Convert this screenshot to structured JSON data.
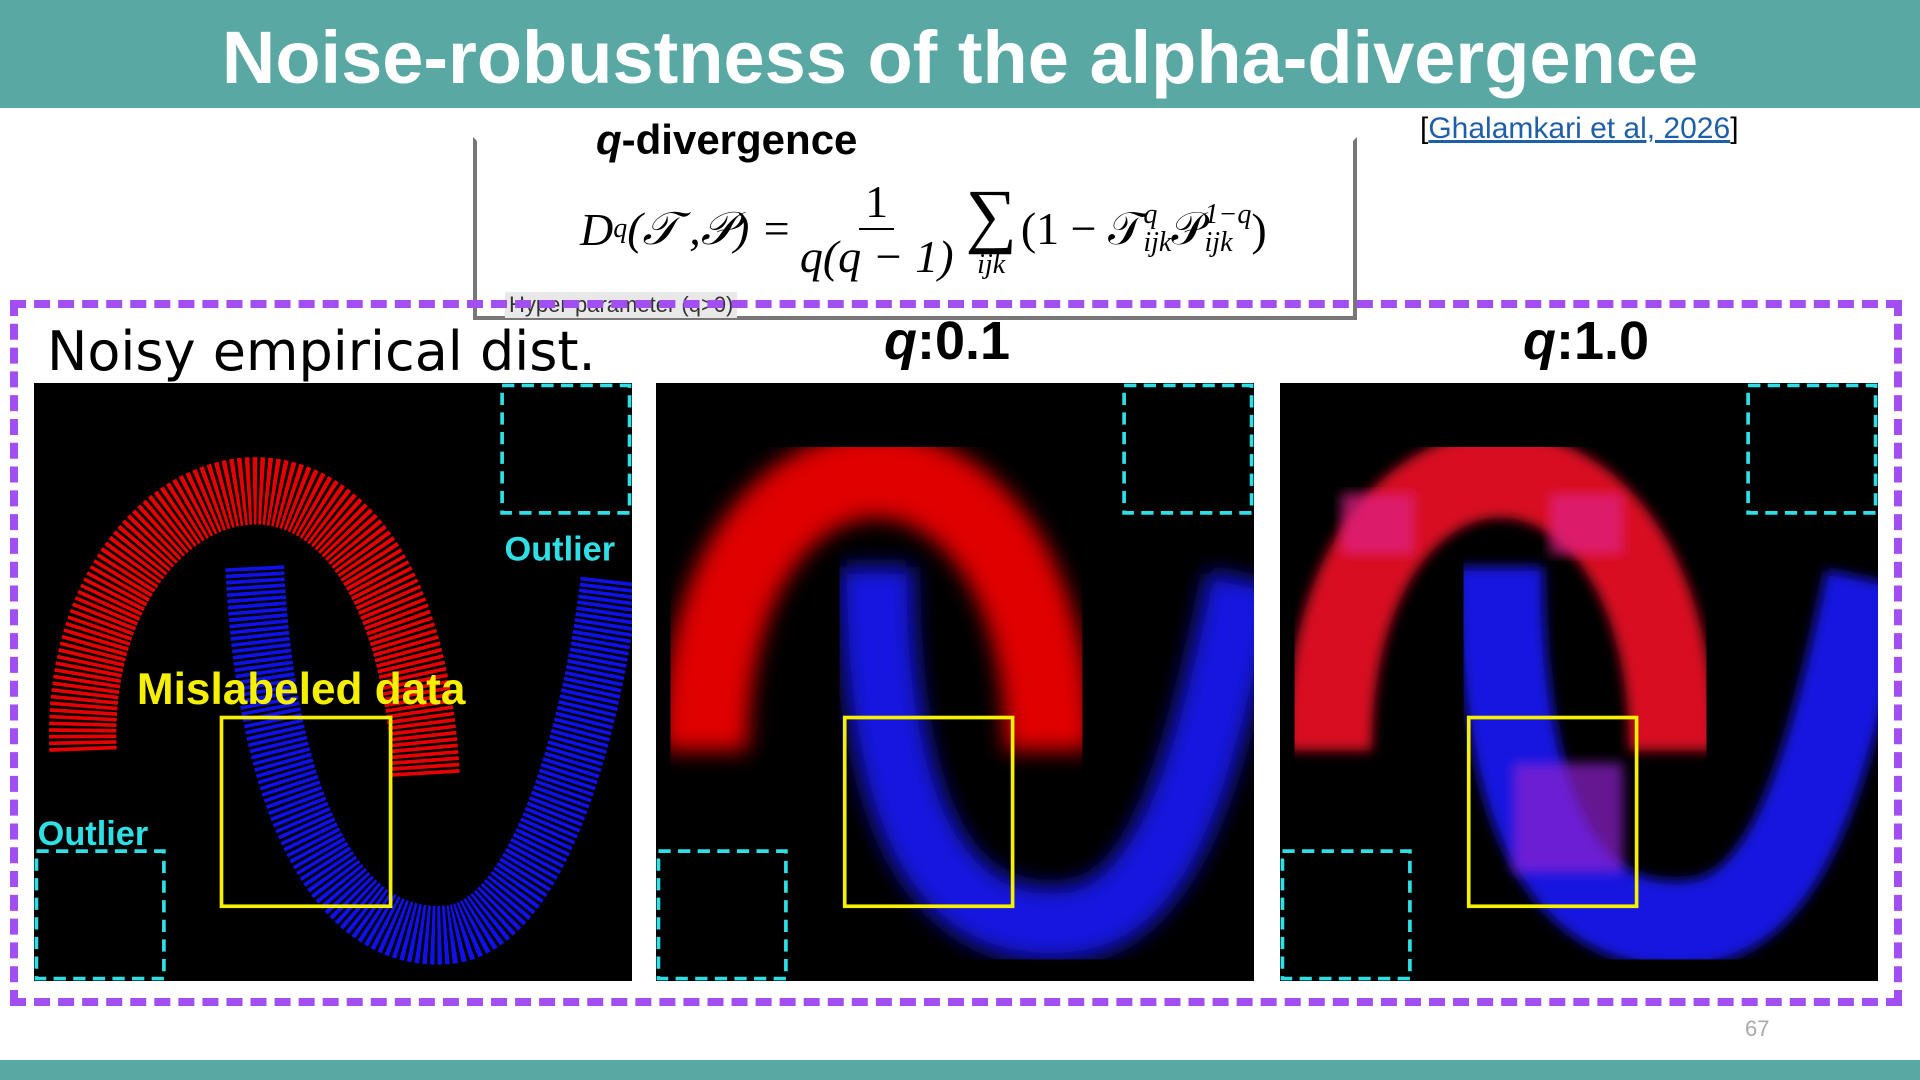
{
  "header": {
    "title": "Noise-robustness of the alpha-divergence",
    "citation_open": "[",
    "citation": "Ghalamkari et al, 2026",
    "citation_close": "]"
  },
  "formula": {
    "heading_var": "q",
    "heading_rest": "-divergence",
    "lhs": "D",
    "lhs_sub": "q",
    "lhs_args": "(𝒯 ,𝒫) =",
    "numerator": "1",
    "denominator": "q(q − 1)",
    "sum": "∑",
    "sum_sub": "ijk",
    "term_open": "(1 − 𝒯",
    "t_sup": "q",
    "t_sub": "ijk",
    "p": "𝒫",
    "p_sup": "1−q",
    "p_sub": "ijk",
    "term_close": ")",
    "note": "Hyper-parameter (q>0)"
  },
  "panels": [
    {
      "label": "Noisy empirical dist.",
      "annotations": {
        "outlier_top": "Outlier",
        "outlier_bottom": "Outlier",
        "mislabeled": "Mislabeled data"
      }
    },
    {
      "label_var": "q",
      "label_rest": ":0.1"
    },
    {
      "label_var": "q",
      "label_rest": ":1.0"
    }
  ],
  "footer": {
    "page_number": "67"
  }
}
